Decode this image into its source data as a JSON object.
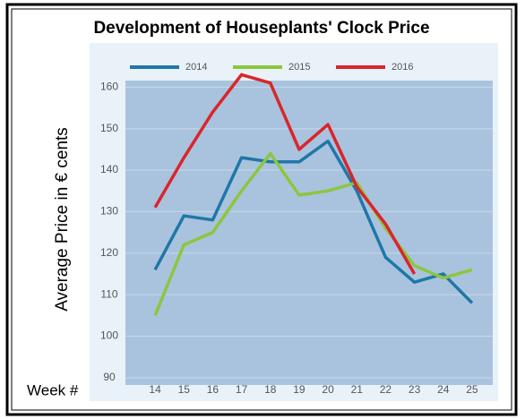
{
  "chart_data": {
    "type": "line",
    "title": "Development of Houseplants' Clock Price",
    "y_label": "Average Price in € cents",
    "x_label": "Week #",
    "categories": [
      "14",
      "15",
      "16",
      "17",
      "18",
      "19",
      "20",
      "21",
      "22",
      "23",
      "24",
      "25"
    ],
    "series": [
      {
        "name": "2014",
        "color": "#1f77a8",
        "values": [
          116,
          129,
          128,
          143,
          142,
          142,
          147,
          135,
          119,
          113,
          115,
          108
        ]
      },
      {
        "name": "2015",
        "color": "#8cc63f",
        "values": [
          105,
          122,
          125,
          135,
          144,
          134,
          135,
          137,
          126,
          117,
          114,
          116
        ]
      },
      {
        "name": "2016",
        "color": "#d9262b",
        "values": [
          131,
          143,
          154,
          163,
          161,
          145,
          151,
          136,
          127,
          115,
          null,
          null
        ]
      }
    ],
    "ylim": [
      85,
      170
    ],
    "yticks": [
      90,
      100,
      110,
      120,
      130,
      140,
      150,
      160
    ],
    "grid": true,
    "legend": "top"
  }
}
